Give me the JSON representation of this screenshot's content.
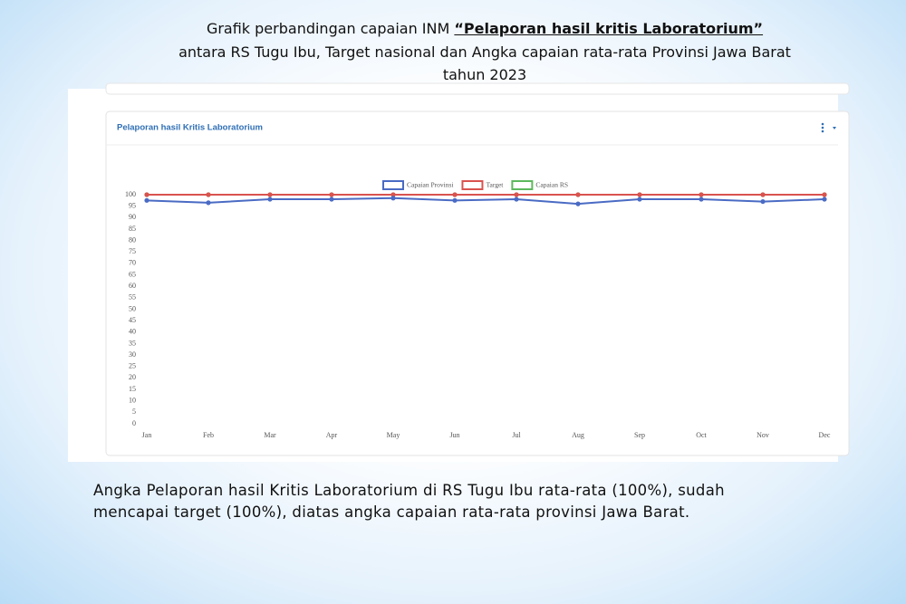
{
  "slide": {
    "heading": [
      "Grafik perbandingan capaian INM ",
      "“Pelaporan hasil kritis Laboratorium”",
      "antara RS Tugu Ibu, Target nasional dan Angka capaian rata-rata Provinsi Jawa Barat",
      "tahun 2023"
    ],
    "note": [
      "Angka Pelaporan hasil Kritis Laboratorium  di RS Tugu Ibu rata-rata (100%), sudah",
      "mencapai target (100%), diatas angka capaian rata-rata provinsi Jawa Barat."
    ]
  },
  "chart_data": {
    "type": "line",
    "title": "Pelaporan hasil Kritis Laboratorium",
    "categories": [
      "Jan",
      "Feb",
      "Mar",
      "Apr",
      "May",
      "Jun",
      "Jul",
      "Aug",
      "Sep",
      "Oct",
      "Nov",
      "Dec"
    ],
    "series": [
      {
        "name": "Capaian Provinsi",
        "color": "#4a6bc4",
        "values": [
          97.5,
          96.5,
          98,
          98,
          98.5,
          97.5,
          98,
          96,
          98,
          98,
          97,
          98
        ]
      },
      {
        "name": "Target",
        "color": "#d9534f",
        "values": [
          100,
          100,
          100,
          100,
          100,
          100,
          100,
          100,
          100,
          100,
          100,
          100
        ]
      },
      {
        "name": "Capaian RS",
        "color": "#5cb85c",
        "values": [
          100,
          100,
          100,
          100,
          100,
          100,
          100,
          100,
          100,
          100,
          100,
          100
        ]
      }
    ],
    "ylim": [
      0,
      100
    ],
    "yticks": [
      0,
      5,
      10,
      15,
      20,
      25,
      30,
      35,
      40,
      45,
      50,
      55,
      60,
      65,
      70,
      75,
      80,
      85,
      90,
      95,
      100
    ],
    "grid": false,
    "legend": "top"
  }
}
